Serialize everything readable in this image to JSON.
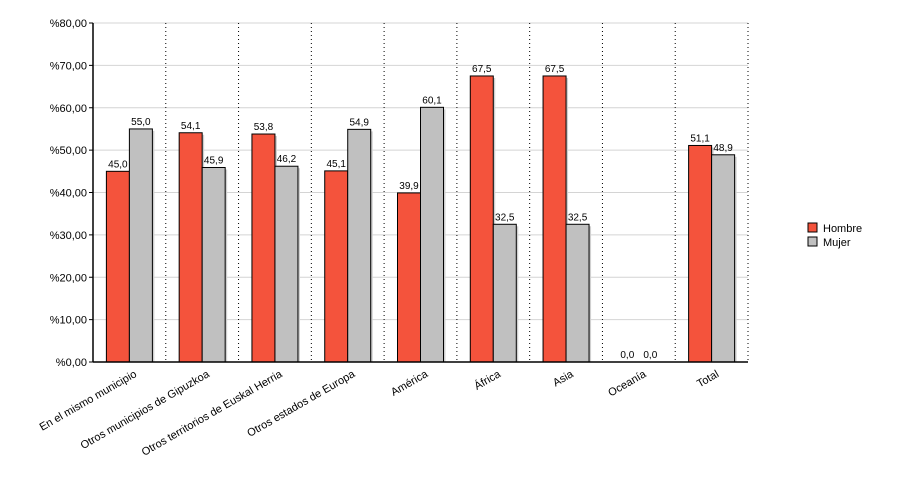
{
  "chart_data": {
    "type": "bar",
    "categories": [
      "En el mismo municipio",
      "Otros municipios de Gipuzkoa",
      "Otros territorios de Euskal Herria",
      "Otros estados de Europa",
      "América",
      "África",
      "Asia",
      "Oceanía",
      "Total"
    ],
    "series": [
      {
        "name": "Hombre",
        "color": "#f4533c",
        "values": [
          45.0,
          54.1,
          53.8,
          45.1,
          39.9,
          67.5,
          67.5,
          0.0,
          51.1
        ],
        "labels": [
          "45,0",
          "54,1",
          "53,8",
          "45,1",
          "39,9",
          "67,5",
          "67,5",
          "0,0",
          "51,1"
        ]
      },
      {
        "name": "Mujer",
        "color": "#c0c0c0",
        "values": [
          55.0,
          45.9,
          46.2,
          54.9,
          60.1,
          32.5,
          32.5,
          0.0,
          48.9
        ],
        "labels": [
          "55,0",
          "45,9",
          "46,2",
          "54,9",
          "60,1",
          "32,5",
          "32,5",
          "0,0",
          "48,9"
        ]
      }
    ],
    "y_ticks": [
      "%0,00",
      "%10,00",
      "%20,00",
      "%30,00",
      "%40,00",
      "%50,00",
      "%60,00",
      "%70,00",
      "%80,00"
    ],
    "ylim": [
      0,
      80
    ],
    "y_step": 10,
    "grid": true,
    "legend_position": "right"
  }
}
